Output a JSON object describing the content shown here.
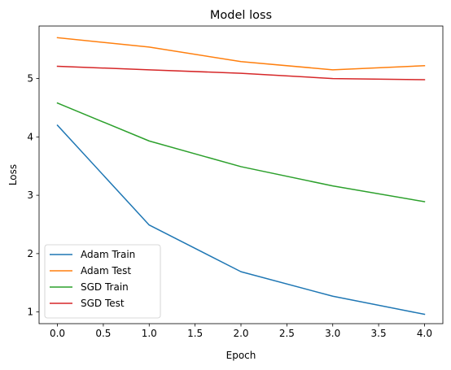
{
  "chart_data": {
    "type": "line",
    "title": "Model loss",
    "xlabel": "Epoch",
    "ylabel": "Loss",
    "x": [
      0,
      1,
      2,
      3,
      4
    ],
    "xlim": [
      -0.2,
      4.2
    ],
    "ylim": [
      0.8,
      5.9
    ],
    "xticks": [
      "0.0",
      "0.5",
      "1.0",
      "1.5",
      "2.0",
      "2.5",
      "3.0",
      "3.5",
      "4.0"
    ],
    "yticks": [
      "1",
      "2",
      "3",
      "4",
      "5"
    ],
    "grid": false,
    "legend_position": "lower-left",
    "series": [
      {
        "name": "Adam Train",
        "color": "#1f77b4",
        "values": [
          4.2,
          2.49,
          1.69,
          1.27,
          0.96
        ]
      },
      {
        "name": "Adam Test",
        "color": "#ff7f0e",
        "values": [
          5.7,
          5.54,
          5.29,
          5.15,
          5.22
        ]
      },
      {
        "name": "SGD Train",
        "color": "#2ca02c",
        "values": [
          4.58,
          3.93,
          3.49,
          3.16,
          2.89
        ]
      },
      {
        "name": "SGD Test",
        "color": "#d62728",
        "values": [
          5.21,
          5.15,
          5.09,
          5.0,
          4.98
        ]
      }
    ]
  }
}
